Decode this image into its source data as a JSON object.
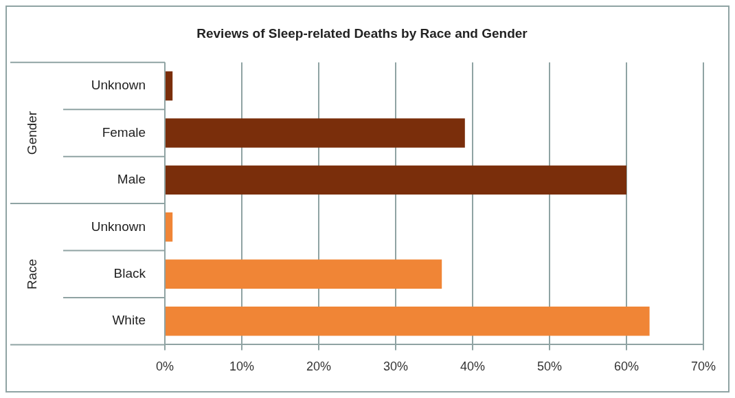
{
  "chart_data": {
    "type": "bar",
    "orientation": "horizontal",
    "title": "Reviews of Sleep-related Deaths by Race and Gender",
    "categories": [
      "Unknown",
      "Female",
      "Male",
      "Unknown",
      "Black",
      "White"
    ],
    "values": [
      1,
      39,
      60,
      1,
      36,
      63
    ],
    "colors": [
      "#7a2e0b",
      "#7a2e0b",
      "#7a2e0b",
      "#f08536",
      "#f08536",
      "#f08536"
    ],
    "xlim": [
      0,
      70
    ],
    "xticks": [
      {
        "value": 0,
        "label": "0%"
      },
      {
        "value": 10,
        "label": "10%"
      },
      {
        "value": 20,
        "label": "20%"
      },
      {
        "value": 30,
        "label": "30%"
      },
      {
        "value": 40,
        "label": "40%"
      },
      {
        "value": 50,
        "label": "50%"
      },
      {
        "value": 60,
        "label": "60%"
      },
      {
        "value": 70,
        "label": "70%"
      }
    ],
    "grid": "x",
    "annotations": [
      "Gender",
      "Race"
    ]
  }
}
